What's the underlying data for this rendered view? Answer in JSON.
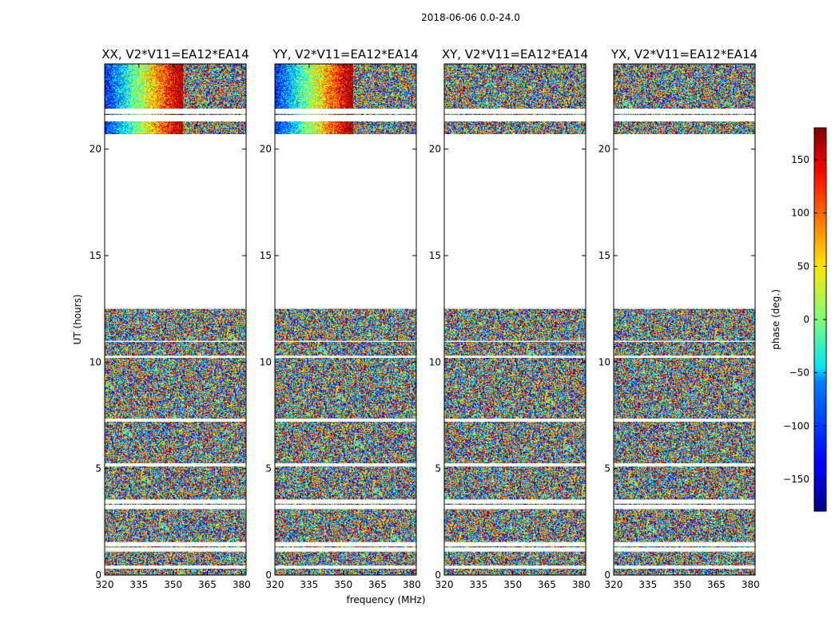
{
  "chart_data": {
    "type": "heatmap",
    "suptitle": "2018-06-06 0.0-24.0",
    "xlabel": "frequency (MHz)",
    "ylabel": "UT (hours)",
    "xlim": [
      320,
      382
    ],
    "ylim": [
      0,
      24
    ],
    "xticks": [
      320,
      335,
      350,
      365,
      380
    ],
    "yticks": [
      0,
      5,
      10,
      15,
      20
    ],
    "panels": [
      {
        "title": "XX, V2*V11=EA12*EA14",
        "polarization": "XX",
        "ytick_labels_shown": true
      },
      {
        "title": "YY, V2*V11=EA12*EA14",
        "polarization": "YY",
        "ytick_labels_shown": true
      },
      {
        "title": "XY, V2*V11=EA12*EA14",
        "polarization": "XY",
        "ytick_labels_shown": true
      },
      {
        "title": "YX, V2*V11=EA12*EA14",
        "polarization": "YX",
        "ytick_labels_shown": true
      }
    ],
    "data_coverage_hours": [
      [
        0.0,
        0.3
      ],
      [
        0.45,
        1.1
      ],
      [
        1.3,
        1.35
      ],
      [
        1.55,
        3.1
      ],
      [
        3.3,
        3.35
      ],
      [
        3.55,
        5.1
      ],
      [
        5.25,
        7.2
      ],
      [
        7.35,
        10.2
      ],
      [
        10.3,
        10.95
      ],
      [
        11.0,
        12.5
      ],
      [
        20.7,
        21.3
      ],
      [
        21.6,
        21.65
      ],
      [
        21.9,
        24.0
      ]
    ],
    "colorbar": {
      "label": "phase (deg.)",
      "range": [
        -180,
        180
      ],
      "ticks": [
        -150,
        -100,
        -50,
        0,
        50,
        100,
        150
      ],
      "tick_labels": [
        "−150",
        "−100",
        "−50",
        "0",
        "50",
        "100",
        "150"
      ],
      "colormap": "jet"
    }
  }
}
